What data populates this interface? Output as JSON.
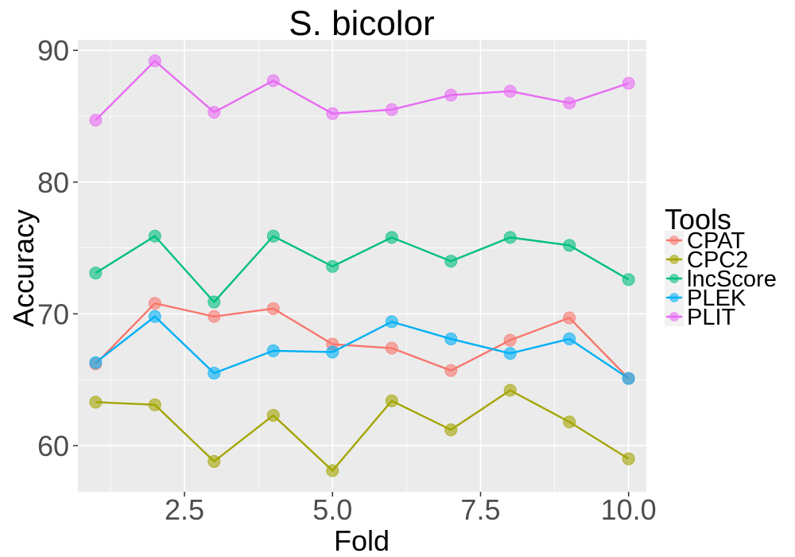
{
  "chart_data": {
    "type": "line",
    "title": "S. bicolor",
    "xlabel": "Fold",
    "ylabel": "Accuracy",
    "xlim": [
      0.7,
      10.3
    ],
    "ylim": [
      56.5,
      90.8
    ],
    "xticks": [
      2.5,
      5.0,
      7.5,
      10.0
    ],
    "xtick_labels": [
      "2.5",
      "5.0",
      "7.5",
      "10.0"
    ],
    "yticks": [
      60,
      70,
      80,
      90
    ],
    "ytick_labels": [
      "60",
      "70",
      "80",
      "90"
    ],
    "x": [
      1,
      2,
      3,
      4,
      5,
      6,
      7,
      8,
      9,
      10
    ],
    "legend_title": "Tools",
    "series": [
      {
        "name": "CPAT",
        "color": "#F8766D",
        "values": [
          66.2,
          70.8,
          69.8,
          70.4,
          67.7,
          67.4,
          65.7,
          68.0,
          69.7,
          65.1
        ]
      },
      {
        "name": "CPC2",
        "color": "#A3A500",
        "values": [
          63.3,
          63.1,
          58.8,
          62.3,
          58.1,
          63.4,
          61.2,
          64.2,
          61.8,
          59.0
        ]
      },
      {
        "name": "lncScore",
        "color": "#00BF7D",
        "values": [
          73.1,
          75.9,
          70.9,
          75.9,
          73.6,
          75.8,
          74.0,
          75.8,
          75.2,
          72.6
        ]
      },
      {
        "name": "PLEK",
        "color": "#00B0F6",
        "values": [
          66.3,
          69.8,
          65.5,
          67.2,
          67.1,
          69.4,
          68.1,
          67.0,
          68.1,
          65.1
        ]
      },
      {
        "name": "PLIT",
        "color": "#E76BF3",
        "values": [
          84.7,
          89.2,
          85.3,
          87.7,
          85.2,
          85.5,
          86.6,
          86.9,
          86.0,
          87.5
        ]
      }
    ]
  }
}
